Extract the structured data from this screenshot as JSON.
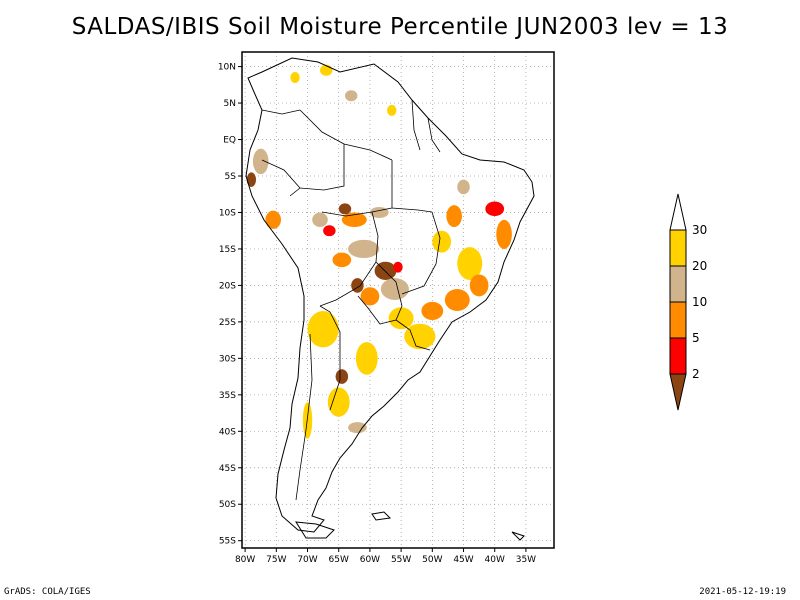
{
  "title": "SALDAS/IBIS Soil Moisture Percentile JUN2003 lev = 13",
  "footer": {
    "left": "GrADS: COLA/IGES",
    "right": "2021-05-12-19:19"
  },
  "map": {
    "lon_range": [
      -80.5,
      -30.5
    ],
    "lat_range": [
      -56,
      12
    ],
    "x_ticks": [
      {
        "label": "80W",
        "lon": -80
      },
      {
        "label": "75W",
        "lon": -75
      },
      {
        "label": "70W",
        "lon": -70
      },
      {
        "label": "65W",
        "lon": -65
      },
      {
        "label": "60W",
        "lon": -60
      },
      {
        "label": "55W",
        "lon": -55
      },
      {
        "label": "50W",
        "lon": -50
      },
      {
        "label": "45W",
        "lon": -45
      },
      {
        "label": "40W",
        "lon": -40
      },
      {
        "label": "35W",
        "lon": -35
      }
    ],
    "y_ticks": [
      {
        "label": "10N",
        "lat": 10
      },
      {
        "label": "5N",
        "lat": 5
      },
      {
        "label": "EQ",
        "lat": 0
      },
      {
        "label": "5S",
        "lat": -5
      },
      {
        "label": "10S",
        "lat": -10
      },
      {
        "label": "15S",
        "lat": -15
      },
      {
        "label": "20S",
        "lat": -20
      },
      {
        "label": "25S",
        "lat": -25
      },
      {
        "label": "30S",
        "lat": -30
      },
      {
        "label": "35S",
        "lat": -35
      },
      {
        "label": "40S",
        "lat": -40
      },
      {
        "label": "45S",
        "lat": -45
      },
      {
        "label": "50S",
        "lat": -50
      },
      {
        "label": "55S",
        "lat": -55
      }
    ],
    "grid": true
  },
  "legend": {
    "type": "colorbar-with-triangular-ends",
    "levels": [
      {
        "label": "",
        "color": "#ffffff",
        "range": ">30"
      },
      {
        "label": "30",
        "color": "#ffd200",
        "range": "20-30"
      },
      {
        "label": "20",
        "color": "#d2b48c",
        "range": "10-20"
      },
      {
        "label": "10",
        "color": "#ff8c00",
        "range": "5-10"
      },
      {
        "label": "5",
        "color": "#ff0000",
        "range": "2-5"
      },
      {
        "label": "2",
        "color": "#8b4513",
        "range": "<2"
      }
    ]
  },
  "chart_data": {
    "type": "heatmap",
    "title": "SALDAS/IBIS Soil Moisture Percentile JUN2003 lev = 13",
    "variable": "Soil Moisture Percentile",
    "period": "JUN2003",
    "level": "lev = 13",
    "xlabel": "",
    "ylabel": "",
    "xlim": [
      -80.5,
      -30.5
    ],
    "ylim": [
      -56,
      12
    ],
    "grid": true,
    "legend_position": "right",
    "bins": [
      "<2",
      "2-5",
      "5-10",
      "10-20",
      "20-30",
      ">30"
    ],
    "bin_colors": [
      "#8b4513",
      "#ff0000",
      "#ff8c00",
      "#d2b48c",
      "#ffd200",
      "#ffffff"
    ],
    "regions": [
      {
        "lon": -62.5,
        "lat": -11.0,
        "w": 4.0,
        "h": 2.0,
        "bin": "5-10"
      },
      {
        "lon": -64.0,
        "lat": -9.5,
        "w": 2.0,
        "h": 1.5,
        "bin": "<2"
      },
      {
        "lon": -66.5,
        "lat": -12.5,
        "w": 2.0,
        "h": 1.5,
        "bin": "2-5"
      },
      {
        "lon": -68.0,
        "lat": -11.0,
        "w": 2.5,
        "h": 2.0,
        "bin": "10-20"
      },
      {
        "lon": -58.5,
        "lat": -10.0,
        "w": 3.0,
        "h": 1.5,
        "bin": "10-20"
      },
      {
        "lon": -61.0,
        "lat": -15.0,
        "w": 5.0,
        "h": 2.5,
        "bin": "10-20"
      },
      {
        "lon": -64.5,
        "lat": -16.5,
        "w": 3.0,
        "h": 2.0,
        "bin": "5-10"
      },
      {
        "lon": -57.5,
        "lat": -18.0,
        "w": 3.5,
        "h": 2.5,
        "bin": "<2"
      },
      {
        "lon": -55.5,
        "lat": -17.5,
        "w": 1.5,
        "h": 1.5,
        "bin": "2-5"
      },
      {
        "lon": -56.0,
        "lat": -20.5,
        "w": 4.5,
        "h": 3.0,
        "bin": "10-20"
      },
      {
        "lon": -60.0,
        "lat": -21.5,
        "w": 3.0,
        "h": 2.5,
        "bin": "5-10"
      },
      {
        "lon": -62.0,
        "lat": -20.0,
        "w": 2.0,
        "h": 2.0,
        "bin": "<2"
      },
      {
        "lon": -55.0,
        "lat": -24.5,
        "w": 4.0,
        "h": 3.0,
        "bin": "20-30"
      },
      {
        "lon": -52.0,
        "lat": -27.0,
        "w": 5.0,
        "h": 3.5,
        "bin": "20-30"
      },
      {
        "lon": -50.0,
        "lat": -23.5,
        "w": 3.5,
        "h": 2.5,
        "bin": "5-10"
      },
      {
        "lon": -46.0,
        "lat": -22.0,
        "w": 4.0,
        "h": 3.0,
        "bin": "5-10"
      },
      {
        "lon": -44.0,
        "lat": -17.0,
        "w": 4.0,
        "h": 4.5,
        "bin": "20-30"
      },
      {
        "lon": -42.5,
        "lat": -20.0,
        "w": 3.0,
        "h": 3.0,
        "bin": "5-10"
      },
      {
        "lon": -48.5,
        "lat": -14.0,
        "w": 3.0,
        "h": 3.0,
        "bin": "20-30"
      },
      {
        "lon": -46.5,
        "lat": -10.5,
        "w": 2.5,
        "h": 3.0,
        "bin": "5-10"
      },
      {
        "lon": -40.0,
        "lat": -9.5,
        "w": 3.0,
        "h": 2.0,
        "bin": "2-5"
      },
      {
        "lon": -38.5,
        "lat": -13.0,
        "w": 2.5,
        "h": 4.0,
        "bin": "5-10"
      },
      {
        "lon": -45.0,
        "lat": -6.5,
        "w": 2.0,
        "h": 2.0,
        "bin": "10-20"
      },
      {
        "lon": -77.5,
        "lat": -3.0,
        "w": 2.5,
        "h": 3.5,
        "bin": "10-20"
      },
      {
        "lon": -79.0,
        "lat": -5.5,
        "w": 1.5,
        "h": 2.0,
        "bin": "<2"
      },
      {
        "lon": -75.5,
        "lat": -11.0,
        "w": 2.5,
        "h": 2.5,
        "bin": "5-10"
      },
      {
        "lon": -67.5,
        "lat": -26.0,
        "w": 5.0,
        "h": 5.0,
        "bin": "20-30"
      },
      {
        "lon": -64.5,
        "lat": -32.5,
        "w": 2.0,
        "h": 2.0,
        "bin": "<2"
      },
      {
        "lon": -65.0,
        "lat": -36.0,
        "w": 3.5,
        "h": 4.0,
        "bin": "20-30"
      },
      {
        "lon": -60.5,
        "lat": -30.0,
        "w": 3.5,
        "h": 4.5,
        "bin": "20-30"
      },
      {
        "lon": -70.0,
        "lat": -38.5,
        "w": 1.5,
        "h": 5.0,
        "bin": "20-30"
      },
      {
        "lon": -62.0,
        "lat": -39.5,
        "w": 3.0,
        "h": 1.5,
        "bin": "10-20"
      },
      {
        "lon": -67.0,
        "lat": 9.5,
        "w": 2.0,
        "h": 1.5,
        "bin": "20-30"
      },
      {
        "lon": -72.0,
        "lat": 8.5,
        "w": 1.5,
        "h": 1.5,
        "bin": "20-30"
      },
      {
        "lon": -63.0,
        "lat": 6.0,
        "w": 2.0,
        "h": 1.5,
        "bin": "10-20"
      },
      {
        "lon": -56.5,
        "lat": 4.0,
        "w": 1.5,
        "h": 1.5,
        "bin": "20-30"
      }
    ]
  }
}
